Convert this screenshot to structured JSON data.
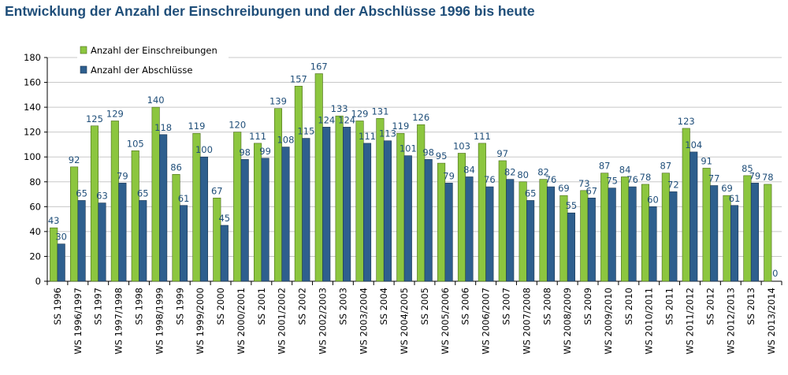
{
  "chart_data": {
    "type": "bar",
    "title": "Entwicklung der Anzahl der Einschreibungen und der Abschlüsse 1996 bis heute",
    "xlabel": "",
    "ylabel": "",
    "ylim": [
      0,
      180
    ],
    "yticks": [
      0,
      20,
      40,
      60,
      80,
      100,
      120,
      140,
      160,
      180
    ],
    "grid": true,
    "legend_position": "top-left",
    "categories": [
      "SS 1996",
      "WS 1996/1997",
      "SS 1997",
      "WS 1997/1998",
      "SS 1998",
      "WS 1998/1999",
      "SS 1999",
      "WS 1999/2000",
      "SS 2000",
      "WS 2000/2001",
      "SS 2001",
      "WS 2001/2002",
      "SS 2002",
      "WS 2002/2003",
      "SS 2003",
      "WS 2003/2004",
      "SS 2004",
      "WS 2004/2005",
      "SS 2005",
      "WS 2005/2006",
      "SS 2006",
      "WS 2006/2007",
      "SS 2007",
      "WS 2007/2008",
      "SS 2008",
      "WS 2008/2009",
      "SS 2009",
      "WS 2009/2010",
      "SS 2010",
      "WS 2010/2011",
      "SS 2011",
      "WS 2011/2012",
      "SS 2012",
      "WS 2012/2013",
      "SS 2013",
      "WS 2013/2014"
    ],
    "series": [
      {
        "name": "Anzahl der Einschreibungen",
        "color": "#8cc63f",
        "values": [
          43,
          92,
          125,
          129,
          105,
          140,
          86,
          119,
          67,
          120,
          111,
          139,
          157,
          167,
          133,
          129,
          131,
          119,
          126,
          95,
          103,
          111,
          97,
          80,
          82,
          69,
          73,
          87,
          84,
          78,
          87,
          123,
          91,
          69,
          85,
          78
        ]
      },
      {
        "name": "Anzahl der Abschlüsse",
        "color": "#2e5f8e",
        "values": [
          30,
          65,
          63,
          79,
          65,
          118,
          61,
          100,
          45,
          98,
          99,
          108,
          115,
          124,
          124,
          111,
          113,
          101,
          98,
          79,
          84,
          76,
          82,
          65,
          76,
          55,
          67,
          75,
          76,
          60,
          72,
          104,
          77,
          61,
          79,
          0
        ]
      }
    ]
  }
}
